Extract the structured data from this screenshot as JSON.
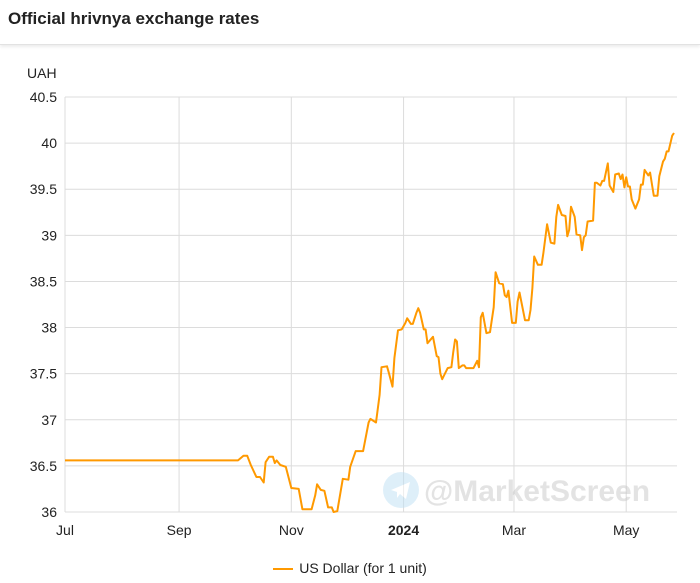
{
  "header": {
    "title": "Official hrivnya exchange rates"
  },
  "watermark": "@MarketScreen",
  "chart_data": {
    "type": "line",
    "title": "Official hrivnya exchange rates",
    "ylabel": "UAH",
    "xlabel": "",
    "x_unit": "days since 2023-07-01",
    "xlim": [
      0,
      331
    ],
    "ylim": [
      36,
      40.5
    ],
    "grid": true,
    "legend_placement": "bottom",
    "y_ticks": [
      "36",
      "36.5",
      "37",
      "37.5",
      "38",
      "38.5",
      "39",
      "39.5",
      "40",
      "40.5"
    ],
    "y_tick_values": [
      36,
      36.5,
      37,
      37.5,
      38,
      38.5,
      39,
      39.5,
      40,
      40.5
    ],
    "x_ticks": [
      {
        "label": "Jul",
        "day": 0,
        "bold": false
      },
      {
        "label": "Sep",
        "day": 62,
        "bold": false
      },
      {
        "label": "Nov",
        "day": 123,
        "bold": false
      },
      {
        "label": "2024",
        "day": 184,
        "bold": true
      },
      {
        "label": "Mar",
        "day": 244,
        "bold": false
      },
      {
        "label": "May",
        "day": 305,
        "bold": false
      }
    ],
    "series": [
      {
        "name": "US Dollar (for 1 unit)",
        "color": "#ff9900",
        "points": [
          [
            0,
            36.56
          ],
          [
            93,
            36.56
          ],
          [
            94,
            36.56
          ],
          [
            97,
            36.61
          ],
          [
            99,
            36.61
          ],
          [
            101,
            36.51
          ],
          [
            104,
            36.38
          ],
          [
            106,
            36.38
          ],
          [
            108,
            36.32
          ],
          [
            109,
            36.54
          ],
          [
            111,
            36.6
          ],
          [
            113,
            36.6
          ],
          [
            114,
            36.53
          ],
          [
            115,
            36.56
          ],
          [
            117,
            36.51
          ],
          [
            120,
            36.49
          ],
          [
            123,
            36.26
          ],
          [
            127,
            36.25
          ],
          [
            129,
            36.03
          ],
          [
            134,
            36.03
          ],
          [
            136,
            36.18
          ],
          [
            137,
            36.3
          ],
          [
            139,
            36.24
          ],
          [
            141,
            36.23
          ],
          [
            143,
            36.05
          ],
          [
            145,
            36.05
          ],
          [
            146,
            36.0
          ],
          [
            148,
            36.01
          ],
          [
            151,
            36.36
          ],
          [
            154,
            36.35
          ],
          [
            155,
            36.49
          ],
          [
            158,
            36.66
          ],
          [
            162,
            36.66
          ],
          [
            165,
            36.97
          ],
          [
            166,
            37.01
          ],
          [
            169,
            36.97
          ],
          [
            171,
            37.27
          ],
          [
            172,
            37.57
          ],
          [
            175,
            37.58
          ],
          [
            176,
            37.51
          ],
          [
            178,
            37.36
          ],
          [
            179,
            37.67
          ],
          [
            181,
            37.97
          ],
          [
            183,
            37.98
          ],
          [
            185,
            38.05
          ],
          [
            186,
            38.1
          ],
          [
            188,
            38.04
          ],
          [
            189,
            38.04
          ],
          [
            191,
            38.16
          ],
          [
            192,
            38.21
          ],
          [
            193,
            38.16
          ],
          [
            195,
            37.98
          ],
          [
            196,
            37.98
          ],
          [
            197,
            37.83
          ],
          [
            200,
            37.9
          ],
          [
            202,
            37.69
          ],
          [
            203,
            37.68
          ],
          [
            204,
            37.5
          ],
          [
            205,
            37.44
          ],
          [
            206,
            37.48
          ],
          [
            208,
            37.56
          ],
          [
            210,
            37.57
          ],
          [
            211,
            37.73
          ],
          [
            212,
            37.87
          ],
          [
            213,
            37.85
          ],
          [
            214,
            37.56
          ],
          [
            216,
            37.59
          ],
          [
            217,
            37.59
          ],
          [
            218,
            37.56
          ],
          [
            222,
            37.56
          ],
          [
            224,
            37.64
          ],
          [
            225,
            37.57
          ],
          [
            226,
            38.11
          ],
          [
            227,
            38.16
          ],
          [
            229,
            37.94
          ],
          [
            231,
            37.95
          ],
          [
            233,
            38.22
          ],
          [
            234,
            38.6
          ],
          [
            236,
            38.48
          ],
          [
            238,
            38.47
          ],
          [
            239,
            38.35
          ],
          [
            240,
            38.33
          ],
          [
            241,
            38.4
          ],
          [
            243,
            38.05
          ],
          [
            245,
            38.05
          ],
          [
            246,
            38.28
          ],
          [
            247,
            38.38
          ],
          [
            250,
            38.08
          ],
          [
            252,
            38.08
          ],
          [
            253,
            38.19
          ],
          [
            254,
            38.43
          ],
          [
            255,
            38.77
          ],
          [
            257,
            38.68
          ],
          [
            259,
            38.68
          ],
          [
            260,
            38.81
          ],
          [
            262,
            39.12
          ],
          [
            264,
            38.92
          ],
          [
            266,
            38.91
          ],
          [
            267,
            39.2
          ],
          [
            268,
            39.33
          ],
          [
            270,
            39.22
          ],
          [
            272,
            39.21
          ],
          [
            273,
            38.99
          ],
          [
            274,
            39.06
          ],
          [
            275,
            39.31
          ],
          [
            277,
            39.2
          ],
          [
            278,
            39.01
          ],
          [
            280,
            39.0
          ],
          [
            281,
            38.84
          ],
          [
            282,
            38.98
          ],
          [
            283,
            39.0
          ],
          [
            284,
            39.15
          ],
          [
            287,
            39.16
          ],
          [
            288,
            39.57
          ],
          [
            289,
            39.57
          ],
          [
            291,
            39.54
          ],
          [
            292,
            39.59
          ],
          [
            293,
            39.59
          ],
          [
            295,
            39.78
          ],
          [
            296,
            39.54
          ],
          [
            298,
            39.47
          ],
          [
            299,
            39.66
          ],
          [
            301,
            39.67
          ],
          [
            302,
            39.61
          ],
          [
            303,
            39.66
          ],
          [
            304,
            39.52
          ],
          [
            305,
            39.63
          ],
          [
            306,
            39.53
          ],
          [
            307,
            39.53
          ],
          [
            308,
            39.39
          ],
          [
            310,
            39.29
          ],
          [
            312,
            39.39
          ],
          [
            313,
            39.55
          ],
          [
            314,
            39.55
          ],
          [
            315,
            39.71
          ],
          [
            317,
            39.65
          ],
          [
            318,
            39.68
          ],
          [
            319,
            39.55
          ],
          [
            320,
            39.43
          ],
          [
            322,
            39.43
          ],
          [
            323,
            39.64
          ],
          [
            325,
            39.8
          ],
          [
            326,
            39.83
          ],
          [
            327,
            39.91
          ],
          [
            328,
            39.91
          ],
          [
            330,
            40.08
          ],
          [
            331,
            40.11
          ]
        ]
      }
    ]
  }
}
